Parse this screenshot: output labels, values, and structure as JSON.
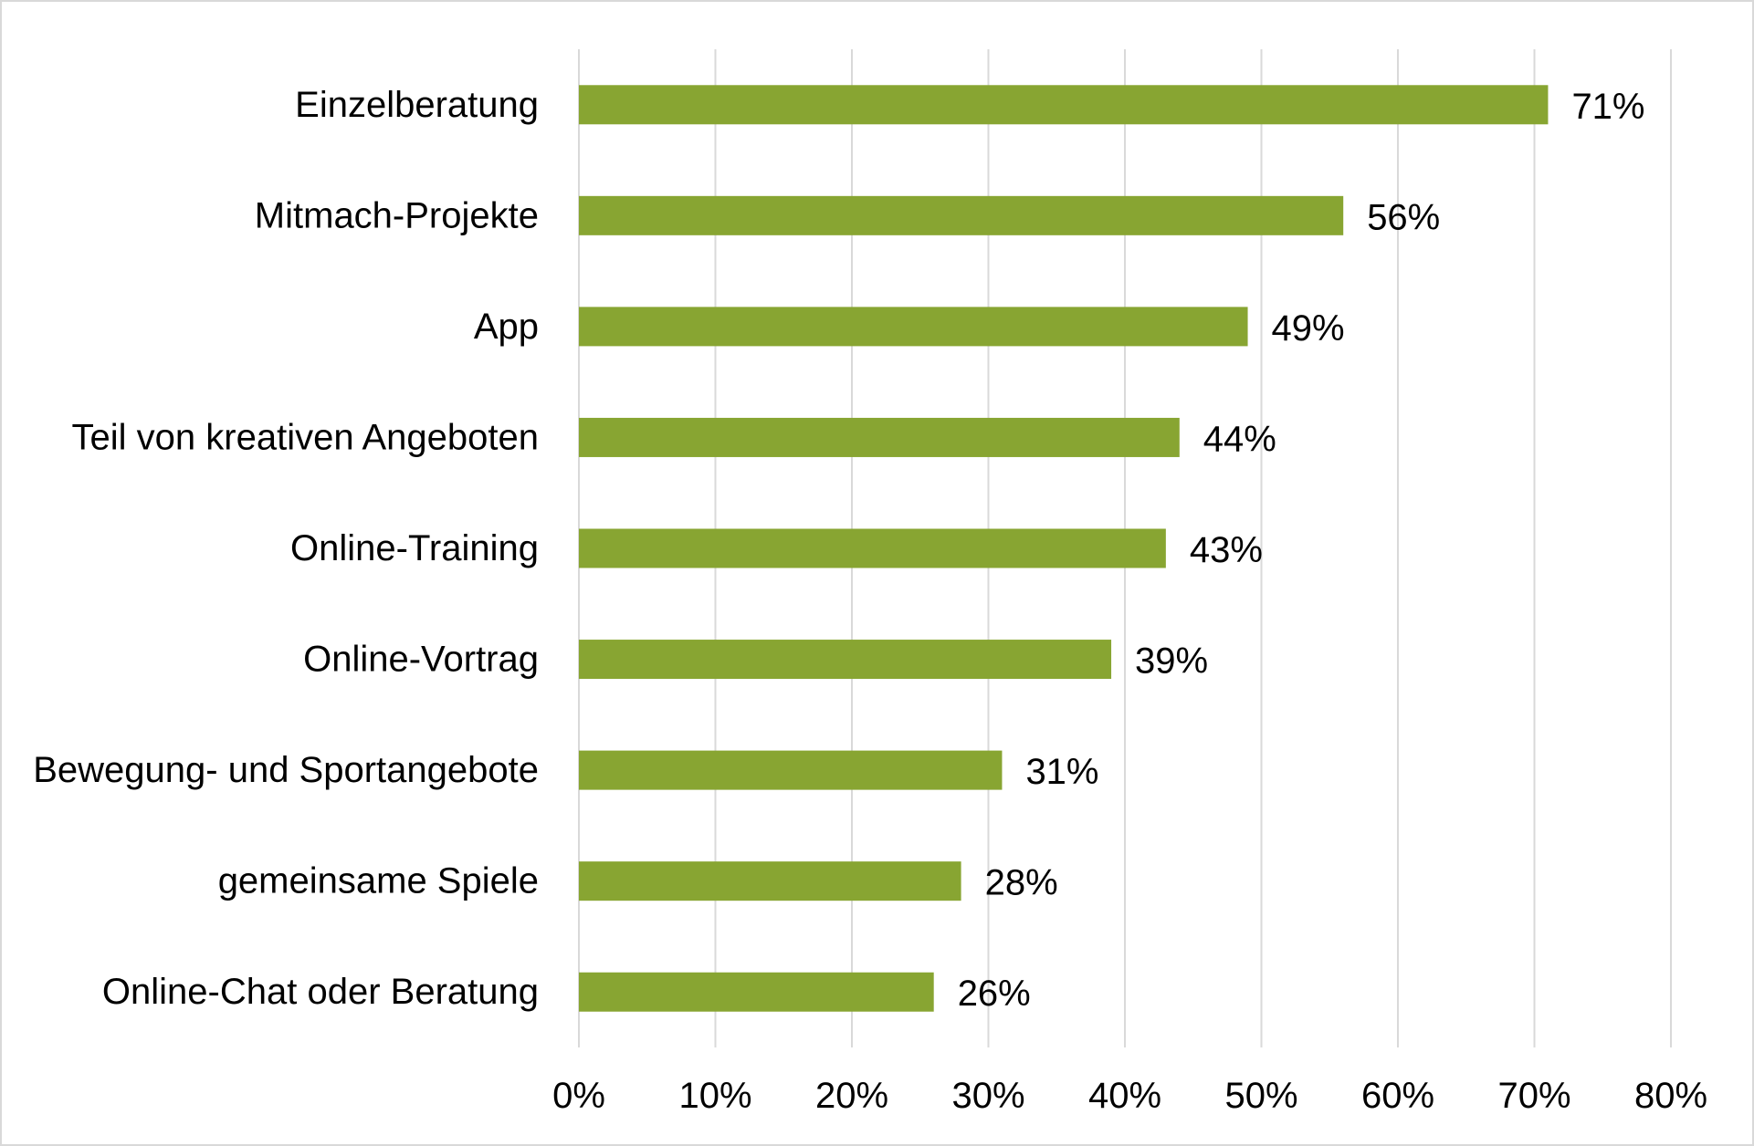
{
  "chart_data": {
    "type": "bar",
    "orientation": "horizontal",
    "categories": [
      "Einzelberatung",
      "Mitmach-Projekte",
      "App",
      "Teil von kreativen Angeboten",
      "Online-Training",
      "Online-Vortrag",
      "Bewegung- und Sportangebote",
      "gemeinsame Spiele",
      "Online-Chat oder Beratung"
    ],
    "values": [
      71,
      56,
      49,
      44,
      43,
      39,
      31,
      28,
      26
    ],
    "data_labels": [
      "71%",
      "56%",
      "49%",
      "44%",
      "43%",
      "39%",
      "31%",
      "28%",
      "26%"
    ],
    "x_ticks": [
      0,
      10,
      20,
      30,
      40,
      50,
      60,
      70,
      80
    ],
    "x_tick_labels": [
      "0%",
      "10%",
      "20%",
      "30%",
      "40%",
      "50%",
      "60%",
      "70%",
      "80%"
    ],
    "xlim": [
      0,
      80
    ],
    "unit": "%",
    "grid": "vertical",
    "legend": "none",
    "bar_color": "#88a532",
    "grid_color": "#d9d9d9"
  }
}
